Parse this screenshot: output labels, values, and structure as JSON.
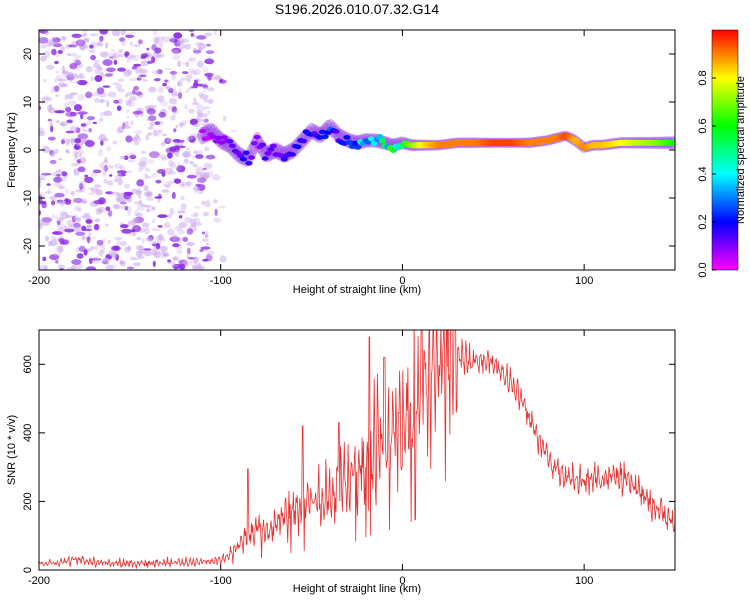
{
  "title": "S196.2026.010.07.32.G14",
  "chart_data": [
    {
      "type": "heatmap",
      "title": "S196.2026.010.07.32.G14",
      "xlabel": "Height of straight line (km)",
      "ylabel": "Frequency (Hz)",
      "xlim": [
        -200,
        150
      ],
      "ylim": [
        -25,
        25
      ],
      "xticks": [
        -200,
        -100,
        0,
        100
      ],
      "xtick_labels": [
        "-200",
        "-100",
        "0",
        "100"
      ],
      "yticks": [
        -20,
        -10,
        0,
        10,
        20
      ],
      "ytick_labels": [
        "-20",
        "-10",
        "0",
        "10",
        "20"
      ],
      "ridge": {
        "x": [
          -110,
          -105,
          -100,
          -95,
          -90,
          -85,
          -80,
          -75,
          -70,
          -65,
          -60,
          -55,
          -50,
          -45,
          -40,
          -35,
          -30,
          -25,
          -20,
          -15,
          -10,
          -5,
          0,
          5,
          10,
          15,
          20,
          30,
          40,
          50,
          60,
          70,
          80,
          85,
          90,
          95,
          100,
          105,
          110,
          120,
          130,
          140,
          150
        ],
        "freq": [
          3,
          4,
          2,
          1,
          -1,
          -2,
          2,
          -1,
          0,
          -1,
          0,
          2,
          4,
          3,
          5,
          3,
          2,
          1.5,
          2,
          2,
          1.5,
          1,
          1.5,
          1,
          1,
          1,
          1,
          1.5,
          1.5,
          1.5,
          1.5,
          1.5,
          2,
          2.5,
          3,
          2,
          0.5,
          1,
          1,
          1.5,
          1.5,
          1.5,
          1.5
        ],
        "amp": [
          0.05,
          0.08,
          0.1,
          0.12,
          0.15,
          0.18,
          0.12,
          0.14,
          0.16,
          0.18,
          0.15,
          0.2,
          0.22,
          0.2,
          0.25,
          0.22,
          0.3,
          0.35,
          0.4,
          0.45,
          0.5,
          0.55,
          0.6,
          0.7,
          0.8,
          0.85,
          0.9,
          0.9,
          0.9,
          0.95,
          0.95,
          0.9,
          0.9,
          0.9,
          0.95,
          0.85,
          0.9,
          0.85,
          0.85,
          0.8,
          0.75,
          0.7,
          0.6
        ]
      },
      "noise_region_x": [
        -200,
        -105
      ],
      "colorbar": {
        "label": "Normalized spectral amplitude",
        "range": [
          0,
          1
        ],
        "ticks": [
          0.0,
          0.2,
          0.4,
          0.6,
          0.8
        ],
        "tick_labels": [
          "0.0",
          "0.2",
          "0.4",
          "0.6",
          "0.8"
        ],
        "colormap": [
          "#ff00ff",
          "#0000ff",
          "#00ffff",
          "#00ff00",
          "#ffff00",
          "#ff0000"
        ]
      }
    },
    {
      "type": "line",
      "xlabel": "Height of straight line (km)",
      "ylabel": "SNR (10 * v/v)",
      "xlim": [
        -200,
        150
      ],
      "ylim": [
        0,
        700
      ],
      "xticks": [
        -200,
        -100,
        0,
        100
      ],
      "xtick_labels": [
        "-200",
        "-100",
        "0",
        "100"
      ],
      "yticks": [
        0,
        200,
        400,
        600
      ],
      "ytick_labels": [
        "0",
        "200",
        "400",
        "600"
      ],
      "line_color": "#e83030",
      "envelope": {
        "x": [
          -200,
          -190,
          -180,
          -170,
          -160,
          -150,
          -140,
          -130,
          -120,
          -110,
          -100,
          -95,
          -90,
          -85,
          -80,
          -75,
          -70,
          -65,
          -60,
          -55,
          -50,
          -45,
          -40,
          -35,
          -30,
          -25,
          -20,
          -15,
          -10,
          -5,
          0,
          5,
          10,
          15,
          20,
          25,
          30,
          35,
          40,
          45,
          50,
          55,
          60,
          65,
          70,
          75,
          80,
          85,
          90,
          95,
          100,
          105,
          110,
          115,
          120,
          125,
          130,
          135,
          140,
          145,
          150
        ],
        "y": [
          20,
          22,
          30,
          25,
          20,
          20,
          20,
          22,
          22,
          25,
          30,
          45,
          70,
          100,
          120,
          110,
          130,
          150,
          170,
          180,
          190,
          200,
          210,
          230,
          250,
          280,
          320,
          360,
          380,
          400,
          420,
          470,
          520,
          560,
          590,
          610,
          620,
          620,
          615,
          610,
          600,
          580,
          550,
          500,
          440,
          380,
          330,
          290,
          270,
          265,
          260,
          265,
          270,
          270,
          268,
          255,
          230,
          200,
          180,
          160,
          130
        ]
      },
      "spikes": [
        {
          "x": -85,
          "y": 295
        },
        {
          "x": -55,
          "y": 420
        },
        {
          "x": -35,
          "y": 430
        },
        {
          "x": -18,
          "y": 680
        },
        {
          "x": -10,
          "y": 620
        },
        {
          "x": 7,
          "y": 700
        },
        {
          "x": 12,
          "y": 640
        }
      ]
    }
  ]
}
